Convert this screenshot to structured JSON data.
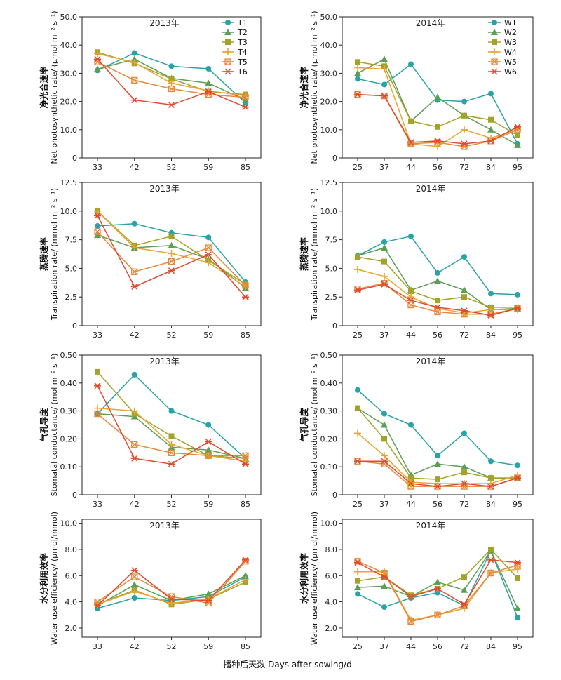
{
  "figure": {
    "xlabel": "播种后天数 Days after sowing/d"
  },
  "legends": {
    "2013": [
      "T1",
      "T2",
      "T3",
      "T4",
      "T5",
      "T6"
    ],
    "2014": [
      "W1",
      "W2",
      "W3",
      "W4",
      "W5",
      "W6"
    ]
  },
  "colors": [
    "#2aa3a8",
    "#5c9e54",
    "#a4a329",
    "#e8a531",
    "#e58a3c",
    "#e2492e"
  ],
  "chart_data": [
    {
      "type": "line",
      "year": "2013",
      "title": "2013年",
      "ylabel_cn": "净光合速率",
      "ylabel_en": "Net photosynthetic rate/ (μmol m⁻² s⁻¹)",
      "ylim": [
        0,
        50
      ],
      "yticks": [
        "0",
        "10.0",
        "20.0",
        "30.0",
        "40.0",
        "50.0"
      ],
      "categories": [
        "33",
        "42",
        "52",
        "59",
        "85"
      ],
      "series": [
        {
          "name": "T1",
          "values": [
            31,
            37.2,
            32.5,
            31.6,
            19.5
          ]
        },
        {
          "name": "T2",
          "values": [
            31.5,
            35,
            28.2,
            26.5,
            20.5
          ]
        },
        {
          "name": "T3",
          "values": [
            37.5,
            33.5,
            28,
            23.5,
            22.5
          ]
        },
        {
          "name": "T4",
          "values": [
            37,
            33.8,
            26.5,
            23.8,
            22
          ]
        },
        {
          "name": "T5",
          "values": [
            34,
            27.5,
            24.5,
            22.5,
            21.5
          ]
        },
        {
          "name": "T6",
          "values": [
            35,
            20.5,
            18.8,
            23.5,
            18
          ]
        }
      ]
    },
    {
      "type": "line",
      "year": "2014",
      "title": "2014年",
      "ylabel_cn": "净光合速率",
      "ylabel_en": "Net photosynthetic rate/ (μmol m⁻² s⁻¹)",
      "ylim": [
        0,
        50
      ],
      "yticks": [
        "0",
        "10.0",
        "20.0",
        "30.0",
        "40.0",
        "50.0"
      ],
      "categories": [
        "25",
        "37",
        "44",
        "56",
        "72",
        "84",
        "95"
      ],
      "series": [
        {
          "name": "W1",
          "values": [
            28,
            26,
            33.2,
            20.5,
            20,
            22.8,
            5
          ]
        },
        {
          "name": "W2",
          "values": [
            30,
            35,
            13,
            21.5,
            15,
            10,
            4.5
          ]
        },
        {
          "name": "W3",
          "values": [
            34,
            32.5,
            13,
            11,
            15,
            13.5,
            8
          ]
        },
        {
          "name": "W4",
          "values": [
            32,
            31.5,
            5,
            4,
            10,
            7,
            10
          ]
        },
        {
          "name": "W5",
          "values": [
            22.5,
            22,
            5,
            5.5,
            4,
            6,
            10
          ]
        },
        {
          "name": "W6",
          "values": [
            22.5,
            22,
            5.5,
            6,
            5,
            6,
            11
          ]
        }
      ]
    },
    {
      "type": "line",
      "year": "2013",
      "title": "2013年",
      "ylabel_cn": "蒸腾速率",
      "ylabel_en": "Transpiration rate/ (mmol m⁻² s⁻¹)",
      "ylim": [
        0,
        12.5
      ],
      "yticks": [
        "0",
        "2.5",
        "5.0",
        "7.5",
        "10.0",
        "12.5"
      ],
      "categories": [
        "33",
        "42",
        "52",
        "59",
        "85"
      ],
      "series": [
        {
          "name": "T1",
          "values": [
            8.7,
            8.9,
            8.1,
            7.7,
            3.8
          ]
        },
        {
          "name": "T2",
          "values": [
            7.9,
            6.8,
            7,
            5.8,
            3.3
          ]
        },
        {
          "name": "T3",
          "values": [
            10,
            7,
            7.8,
            5.7,
            3.6
          ]
        },
        {
          "name": "T4",
          "values": [
            10,
            6.8,
            6.3,
            5.5,
            3.4
          ]
        },
        {
          "name": "T5",
          "values": [
            8.2,
            4.7,
            5.6,
            6.8,
            3.5
          ]
        },
        {
          "name": "T6",
          "values": [
            9.6,
            3.4,
            4.8,
            6.2,
            2.5
          ]
        }
      ]
    },
    {
      "type": "line",
      "year": "2014",
      "title": "2014年",
      "ylabel_cn": "蒸腾速率",
      "ylabel_en": "Transpiration rate/ (mmol m⁻² s⁻¹)",
      "ylim": [
        0,
        12.5
      ],
      "yticks": [
        "0",
        "2.5",
        "5.0",
        "7.5",
        "10.0",
        "12.5"
      ],
      "categories": [
        "25",
        "37",
        "44",
        "56",
        "72",
        "84",
        "95"
      ],
      "series": [
        {
          "name": "W1",
          "values": [
            6.1,
            7.3,
            7.8,
            4.6,
            6,
            2.8,
            2.7
          ]
        },
        {
          "name": "W2",
          "values": [
            6.1,
            6.8,
            3.1,
            3.9,
            3.1,
            1.4,
            1.5
          ]
        },
        {
          "name": "W3",
          "values": [
            6,
            5.6,
            3,
            2.2,
            2.5,
            1.6,
            1.6
          ]
        },
        {
          "name": "W4",
          "values": [
            4.9,
            4.3,
            2.5,
            1.5,
            1.1,
            1.4,
            1.4
          ]
        },
        {
          "name": "W5",
          "values": [
            3.2,
            3.7,
            1.8,
            1.2,
            1,
            1,
            1.5
          ]
        },
        {
          "name": "W6",
          "values": [
            3.1,
            3.6,
            2.2,
            1.6,
            1.3,
            0.9,
            1.5
          ]
        }
      ]
    },
    {
      "type": "line",
      "year": "2013",
      "title": "2013年",
      "ylabel_cn": "气孔导度",
      "ylabel_en": "Stomatal conductance/ (mol m⁻² s⁻¹)",
      "ylim": [
        0,
        0.5
      ],
      "yticks": [
        "0",
        "0.10",
        "0.20",
        "0.30",
        "0.40",
        "0.50"
      ],
      "categories": [
        "33",
        "42",
        "52",
        "59",
        "85"
      ],
      "series": [
        {
          "name": "T1",
          "values": [
            0.29,
            0.43,
            0.3,
            0.25,
            0.13
          ]
        },
        {
          "name": "T2",
          "values": [
            0.29,
            0.28,
            0.17,
            0.16,
            0.13
          ]
        },
        {
          "name": "T3",
          "values": [
            0.44,
            0.29,
            0.21,
            0.14,
            0.13
          ]
        },
        {
          "name": "T4",
          "values": [
            0.31,
            0.3,
            0.18,
            0.14,
            0.12
          ]
        },
        {
          "name": "T5",
          "values": [
            0.29,
            0.18,
            0.15,
            0.14,
            0.14
          ]
        },
        {
          "name": "T6",
          "values": [
            0.39,
            0.13,
            0.11,
            0.19,
            0.11
          ]
        }
      ]
    },
    {
      "type": "line",
      "year": "2014",
      "title": "2014年",
      "ylabel_cn": "气孔导度",
      "ylabel_en": "Stomatal conductance/ (mol m⁻² s⁻¹)",
      "ylim": [
        0,
        0.5
      ],
      "yticks": [
        "0",
        "0.10",
        "0.20",
        "0.30",
        "0.40",
        "0.50"
      ],
      "categories": [
        "25",
        "37",
        "44",
        "56",
        "72",
        "84",
        "95"
      ],
      "series": [
        {
          "name": "W1",
          "values": [
            0.375,
            0.29,
            0.25,
            0.14,
            0.22,
            0.12,
            0.105
          ]
        },
        {
          "name": "W2",
          "values": [
            0.31,
            0.25,
            0.07,
            0.11,
            0.1,
            0.06,
            0.06
          ]
        },
        {
          "name": "W3",
          "values": [
            0.31,
            0.2,
            0.06,
            0.055,
            0.08,
            0.06,
            0.06
          ]
        },
        {
          "name": "W4",
          "values": [
            0.22,
            0.14,
            0.045,
            0.04,
            0.04,
            0.04,
            0.07
          ]
        },
        {
          "name": "W5",
          "values": [
            0.12,
            0.11,
            0.03,
            0.03,
            0.03,
            0.03,
            0.06
          ]
        },
        {
          "name": "W6",
          "values": [
            0.12,
            0.12,
            0.04,
            0.03,
            0.04,
            0.03,
            0.06
          ]
        }
      ]
    },
    {
      "type": "line",
      "year": "2013",
      "title": "2013年",
      "ylabel_cn": "水分利用效率",
      "ylabel_en": "Water use efficiency/ (μmol/mmol)",
      "ylim": [
        1.3,
        10.3
      ],
      "yticks": [
        "2.0",
        "4.0",
        "6.0",
        "8.0",
        "10.0"
      ],
      "ytick_values": [
        2,
        4,
        6,
        8,
        10
      ],
      "categories": [
        "33",
        "42",
        "52",
        "59",
        "85"
      ],
      "series": [
        {
          "name": "T1",
          "values": [
            3.5,
            4.3,
            4.1,
            4.4,
            5.9
          ]
        },
        {
          "name": "T2",
          "values": [
            3.7,
            5.3,
            4.1,
            4.6,
            6
          ]
        },
        {
          "name": "T3",
          "values": [
            3.8,
            4.9,
            3.8,
            4.2,
            5.5
          ]
        },
        {
          "name": "T4",
          "values": [
            3.8,
            4.8,
            3.9,
            4.2,
            5.7
          ]
        },
        {
          "name": "T5",
          "values": [
            4,
            5.9,
            4.4,
            3.9,
            7.1
          ]
        },
        {
          "name": "T6",
          "values": [
            3.7,
            6.4,
            4.2,
            4.1,
            7.2
          ]
        }
      ]
    },
    {
      "type": "line",
      "year": "2014",
      "title": "2014年",
      "ylabel_cn": "水分利用效率",
      "ylabel_en": "Water use efficiency/ (μmol/mmol)",
      "ylim": [
        1.3,
        10.3
      ],
      "yticks": [
        "2.0",
        "4.0",
        "6.0",
        "8.0",
        "10.0"
      ],
      "ytick_values": [
        2,
        4,
        6,
        8,
        10
      ],
      "categories": [
        "25",
        "37",
        "44",
        "56",
        "72",
        "84",
        "95"
      ],
      "series": [
        {
          "name": "W1",
          "values": [
            4.6,
            3.6,
            4.3,
            4.7,
            3.7,
            7.9,
            2.8
          ]
        },
        {
          "name": "W2",
          "values": [
            5.1,
            5.2,
            4.4,
            5.5,
            4.9,
            7.9,
            3.5
          ]
        },
        {
          "name": "W3",
          "values": [
            5.6,
            5.9,
            4.5,
            5,
            5.9,
            8,
            5.8
          ]
        },
        {
          "name": "W4",
          "values": [
            6.3,
            6.3,
            2.6,
            3,
            3.5,
            6.2,
            6.5
          ]
        },
        {
          "name": "W5",
          "values": [
            7.1,
            6.2,
            2.5,
            3,
            3.7,
            6.2,
            6.8
          ]
        },
        {
          "name": "W6",
          "values": [
            7,
            5.9,
            4.4,
            5,
            3.8,
            7.2,
            7
          ]
        }
      ]
    }
  ]
}
